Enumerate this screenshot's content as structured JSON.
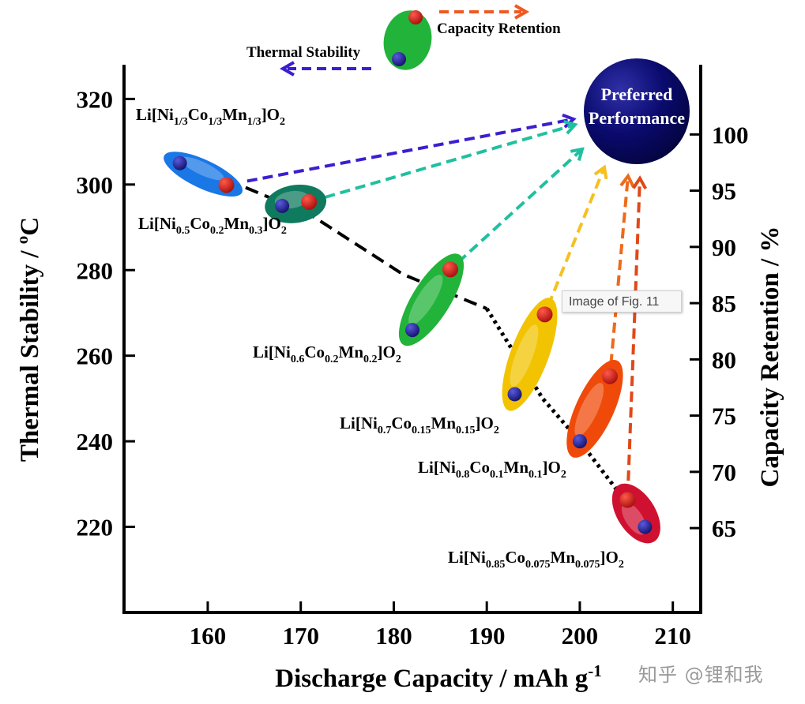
{
  "chart_data": {
    "type": "scatter",
    "xlabel": "Discharge Capacity / mAh g",
    "xlabel_sup": "-1",
    "ylabel_left": "Thermal Stability / ",
    "ylabel_left_sup": "o",
    "ylabel_left_unit": "C",
    "ylabel_right": "Capacity Retention / %",
    "xlim": [
      151,
      213
    ],
    "ylim_left": [
      200,
      328
    ],
    "ylim_right": [
      57.5,
      106.2
    ],
    "x_ticks": [
      160,
      170,
      180,
      190,
      200,
      210
    ],
    "y_left_ticks": [
      220,
      240,
      260,
      280,
      300,
      320
    ],
    "y_right_ticks": [
      65,
      70,
      75,
      80,
      85,
      90,
      95,
      100
    ],
    "series": [
      {
        "name": "Li[Ni1/3Co1/3Mn1/3]O2",
        "label_parts": [
          [
            "Li[Ni",
            ""
          ],
          [
            "1/3",
            "sub"
          ],
          [
            "Co",
            ""
          ],
          [
            "1/3",
            "sub"
          ],
          [
            "Mn",
            ""
          ],
          [
            "1/3",
            "sub"
          ],
          [
            "]O",
            ""
          ],
          [
            "2",
            "sub"
          ]
        ],
        "capacity": 157,
        "thermal_stability": 305,
        "retention": 95.5,
        "color": "#1a77e6",
        "retention_arrow_color": "#3a1fd0"
      },
      {
        "name": "Li[Ni0.5Co0.2Mn0.3]O2",
        "label_parts": [
          [
            "Li[Ni",
            ""
          ],
          [
            "0.5",
            "sub"
          ],
          [
            "Co",
            ""
          ],
          [
            "0.2",
            "sub"
          ],
          [
            "Mn",
            ""
          ],
          [
            "0.3",
            "sub"
          ],
          [
            "]O",
            ""
          ],
          [
            "2",
            "sub"
          ]
        ],
        "capacity": 168,
        "thermal_stability": 295,
        "retention": 94.0,
        "color": "#0f7a5e",
        "retention_arrow_color": "#1fc0a0"
      },
      {
        "name": "Li[Ni0.6Co0.2Mn0.2]O2",
        "label_parts": [
          [
            "Li[Ni",
            ""
          ],
          [
            "0.6",
            "sub"
          ],
          [
            "Co",
            ""
          ],
          [
            "0.2",
            "sub"
          ],
          [
            "Mn",
            ""
          ],
          [
            "0.2",
            "sub"
          ],
          [
            "]O",
            ""
          ],
          [
            "2",
            "sub"
          ]
        ],
        "capacity": 182,
        "thermal_stability": 266,
        "retention": 88.0,
        "color": "#22b33a",
        "retention_arrow_color": "#1fc0a0"
      },
      {
        "name": "Li[Ni0.7Co0.15Mn0.15]O2",
        "label_parts": [
          [
            "Li[Ni",
            ""
          ],
          [
            "0.7",
            "sub"
          ],
          [
            "Co",
            ""
          ],
          [
            "0.15",
            "sub"
          ],
          [
            "Mn",
            ""
          ],
          [
            "0.15",
            "sub"
          ],
          [
            "]O",
            ""
          ],
          [
            "2",
            "sub"
          ]
        ],
        "capacity": 193,
        "thermal_stability": 251,
        "retention": 84.0,
        "color": "#f2c300",
        "retention_arrow_color": "#f5c020"
      },
      {
        "name": "Li[Ni0.8Co0.1Mn0.1]O2",
        "label_parts": [
          [
            "Li[Ni",
            ""
          ],
          [
            "0.8",
            "sub"
          ],
          [
            "Co",
            ""
          ],
          [
            "0.1",
            "sub"
          ],
          [
            "Mn",
            ""
          ],
          [
            "0.1",
            "sub"
          ],
          [
            "]O",
            ""
          ],
          [
            "2",
            "sub"
          ]
        ],
        "capacity": 200,
        "thermal_stability": 240,
        "retention": 78.5,
        "color": "#f04a0a",
        "retention_arrow_color": "#ee6a1a"
      },
      {
        "name": "Li[Ni0.85Co0.075Mn0.075]O2",
        "label_parts": [
          [
            "Li[Ni",
            ""
          ],
          [
            "0.85",
            "sub"
          ],
          [
            "Co",
            ""
          ],
          [
            "0.075",
            "sub"
          ],
          [
            "Mn",
            ""
          ],
          [
            "0.075",
            "sub"
          ],
          [
            "]O",
            ""
          ],
          [
            "2",
            "sub"
          ]
        ],
        "capacity": 207,
        "thermal_stability": 220,
        "retention": 67.5,
        "color": "#d01030",
        "retention_arrow_color": "#e04818"
      }
    ],
    "legend": {
      "capacity_retention": "Capacity Retention",
      "thermal_stability": "Thermal Stability"
    },
    "preferred": {
      "line1": "Preferred",
      "line2": "Performance",
      "color": "#0a0a6e"
    },
    "marker_colors": {
      "capacity_retention": "#c41010",
      "thermal_stability": "#1a1a8c"
    }
  },
  "tooltip": "Image of Fig. 11",
  "watermark": "知乎 @锂和我"
}
